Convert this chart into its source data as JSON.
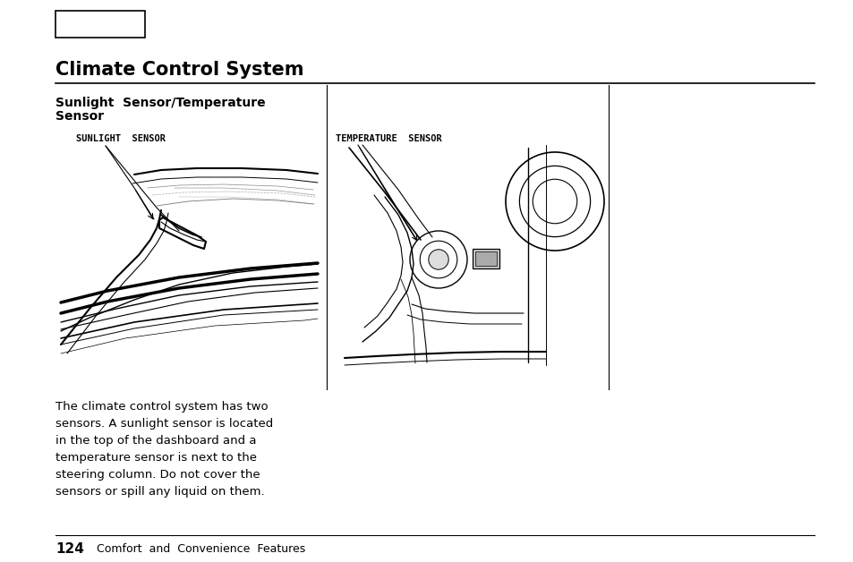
{
  "page_background": "#ffffff",
  "title": "Climate Control System",
  "title_fontsize": 15,
  "section_title_line1": "Sunlight  Sensor/Temperature",
  "section_title_line2": "Sensor",
  "section_title_fontsize": 10,
  "sunlight_label": "SUNLIGHT  SENSOR",
  "temperature_label": "TEMPERATURE  SENSOR",
  "body_text": "The climate control system has two\nsensors. A sunlight sensor is located\nin the top of the dashboard and a\ntemperature sensor is next to the\nsteering column. Do not cover the\nsensors or spill any liquid on them.",
  "body_fontsize": 9.5,
  "footer_number": "124",
  "footer_text": "Comfort  and  Convenience  Features",
  "footer_fontsize": 9
}
